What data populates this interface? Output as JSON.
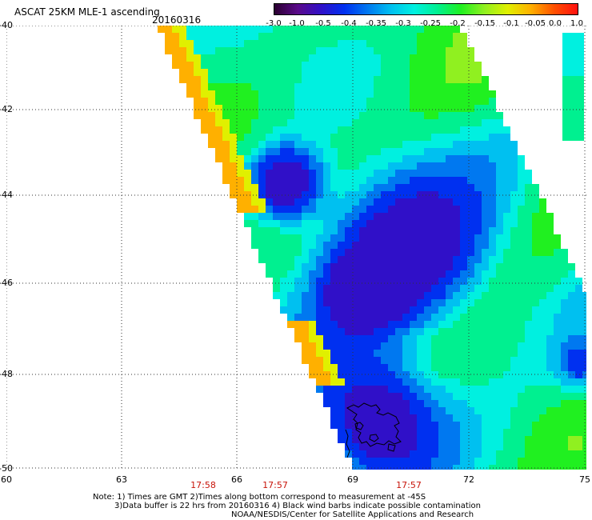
{
  "title": "ASCAT 25KM MLE-1 ascending",
  "date": "20160316",
  "colorbar": {
    "ticks": [
      "-3.0",
      "-1.0",
      "-0.5",
      "-0.4",
      "-0.35",
      "-0.3",
      "-0.25",
      "-0.2",
      "-0.15",
      "-0.1",
      "-0.05",
      "0.0",
      "1.0"
    ],
    "colors": [
      "#2a0030",
      "#5a0a8a",
      "#3010c8",
      "#0030f0",
      "#0078f0",
      "#00c0f0",
      "#00f0e0",
      "#00f090",
      "#20f020",
      "#90f020",
      "#e0f000",
      "#ffb000",
      "#ff5000",
      "#ff1010"
    ]
  },
  "axes": {
    "lat_labels": [
      "-40",
      "-42",
      "-44",
      "-46",
      "-48",
      "-50"
    ],
    "lon_labels": [
      "60",
      "63",
      "66",
      "69",
      "72",
      "75"
    ]
  },
  "time_labels": [
    "17:58",
    "17:57",
    "17:57"
  ],
  "notes": [
    "Note: 1) Times are GMT 2)Times along bottom correspond to measurement at -45S",
    "3)Data buffer is 22 hrs from 20160316 4) Black wind barbs indicate possible contamination",
    "NOAA/NESDIS/Center for Satellite Applications and Research"
  ]
}
